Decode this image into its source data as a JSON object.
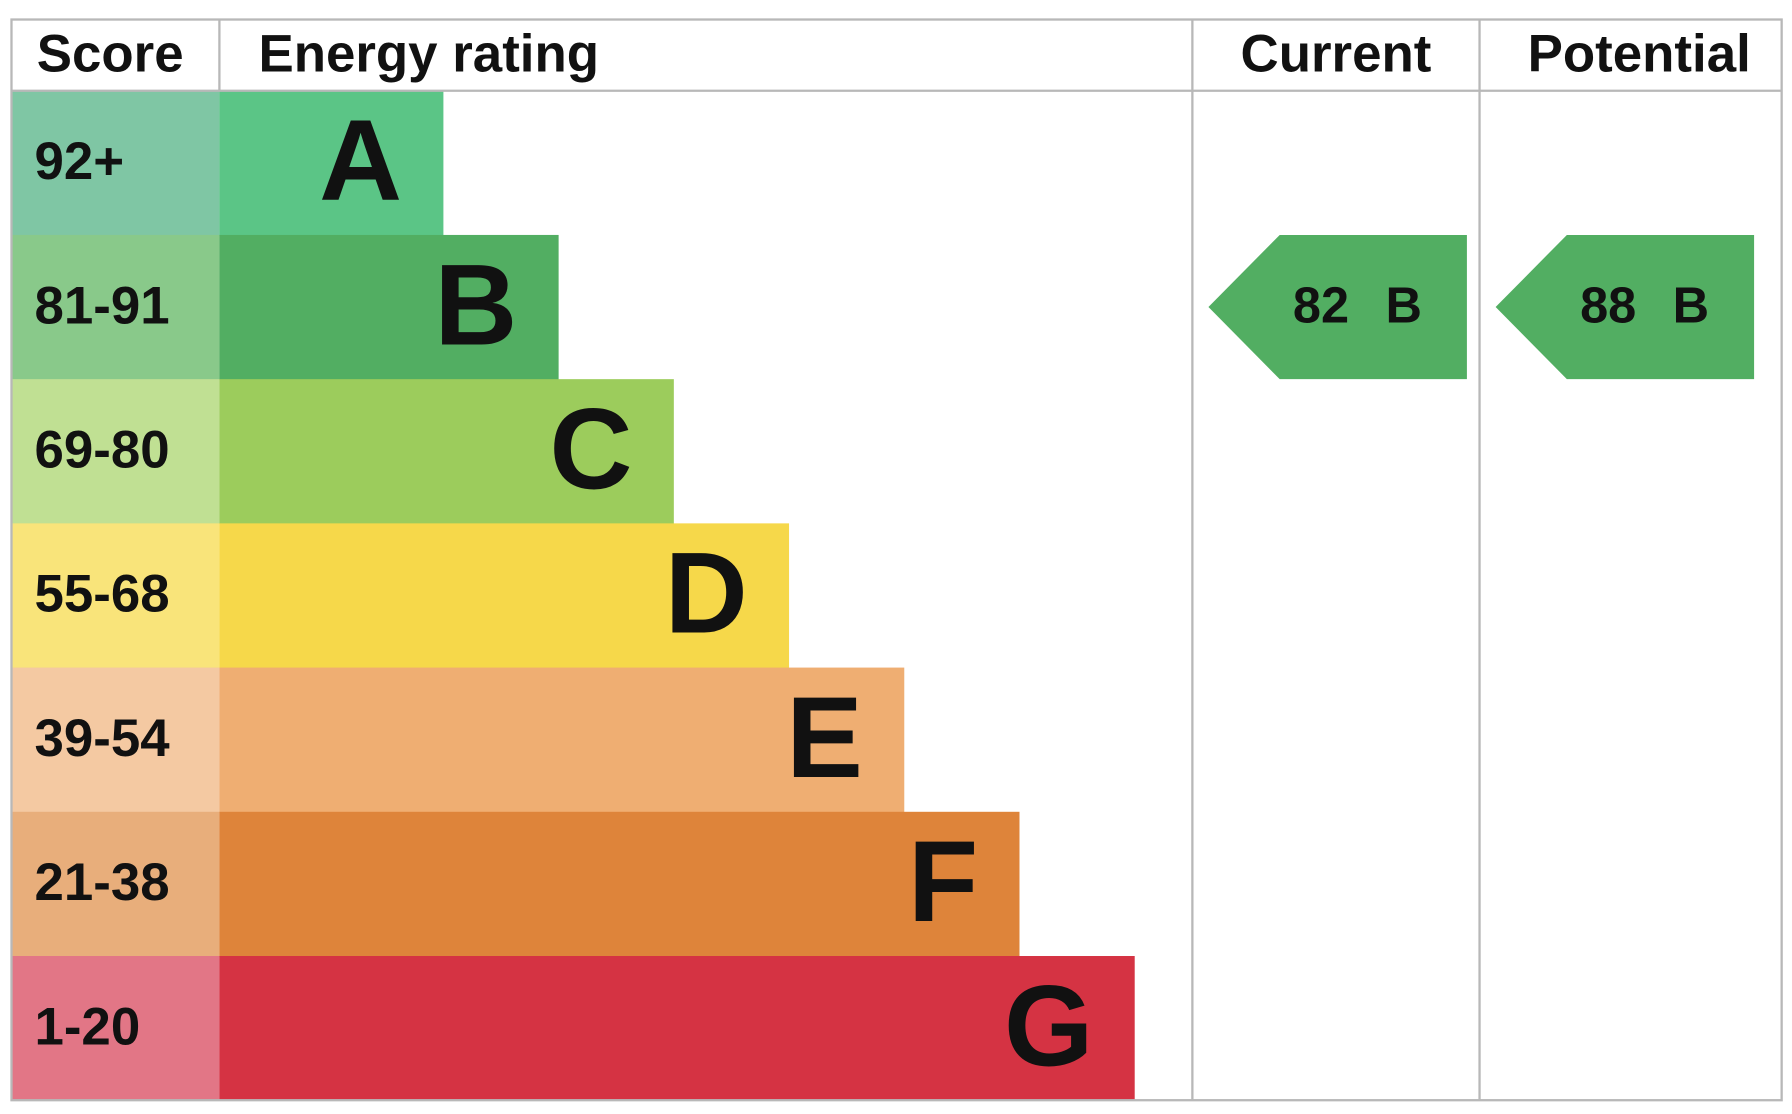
{
  "chart_data": {
    "type": "epc",
    "headers": [
      "Score",
      "Energy rating",
      "Current",
      "Potential"
    ],
    "bands": [
      {
        "score": "92+",
        "letter": "A",
        "color": "#5bc586",
        "score_color": "#7fc6a4"
      },
      {
        "score": "81-91",
        "letter": "B",
        "color": "#52ae62",
        "score_color": "#89c98a"
      },
      {
        "score": "69-80",
        "letter": "C",
        "color": "#9ccc5c",
        "score_color": "#c0e093"
      },
      {
        "score": "55-68",
        "letter": "D",
        "color": "#f6d84a",
        "score_color": "#f9e47a"
      },
      {
        "score": "39-54",
        "letter": "E",
        "color": "#efae72",
        "score_color": "#f4c9a2"
      },
      {
        "score": "21-38",
        "letter": "F",
        "color": "#de843a",
        "score_color": "#e8ae7b"
      },
      {
        "score": "1-20",
        "letter": "G",
        "color": "#d53343",
        "score_color": "#e27686"
      }
    ],
    "current": {
      "value": 82,
      "band": "B"
    },
    "potential": {
      "value": 88,
      "band": "B"
    }
  }
}
